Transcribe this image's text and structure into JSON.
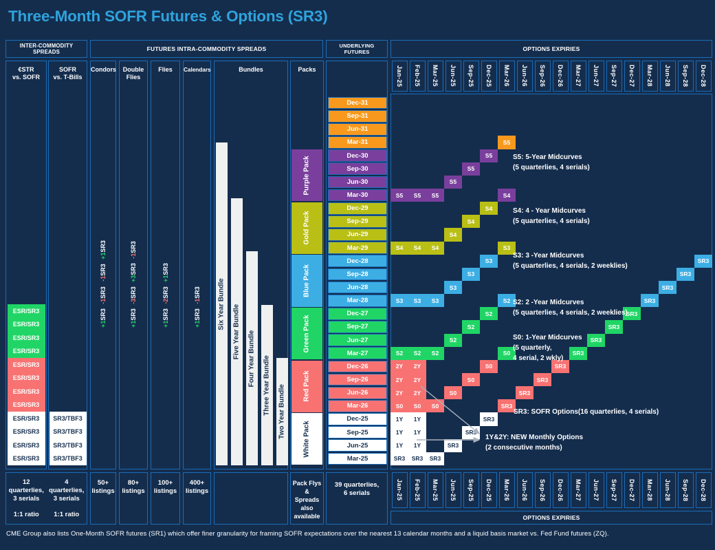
{
  "title": "Three-Month SOFR Futures & Options (SR3)",
  "footer": "CME Group also lists One-Month SOFR futures (SR1) which offer finer granularity for framing SOFR expectations over the nearest 13 calendar months and a liquid basis market vs. Fed Fund futures (ZQ).",
  "colors": {
    "background": "#142D4D",
    "border": "#1B6CB8",
    "title": "#2FA3DD",
    "orange": "#F8991D",
    "purple": "#7A3F9D",
    "gold": "#B9BF15",
    "blue": "#3CAEE4",
    "green": "#20D565",
    "red": "#F87272",
    "white": "#FFFFFF",
    "navy_text": "#16304F",
    "arrow": "#A9B2BC"
  },
  "headers": {
    "inter_commodity": "INTER-COMMODITY SPREADS",
    "intra_commodity": "FUTURES INTRA-COMMODITY SPREADS",
    "underlying_futures": "UNDERLYING FUTURES",
    "options_expiries_top": "OPTIONS EXPIRIES",
    "options_expiries_bottom": "OPTIONS EXPIRIES"
  },
  "inter_commodity": {
    "columns": [
      {
        "label": "€STR\nvs. SOFR",
        "summary": "12 quarterlies,\n3 serials",
        "ratio": "1:1 ratio",
        "blocks": [
          {
            "color": "green",
            "cells": [
              "ESR/SR3",
              "ESR/SR3",
              "ESR/SR3",
              "ESR/SR3"
            ]
          },
          {
            "color": "red",
            "cells": [
              "ESR/SR3",
              "ESR/SR3",
              "ESR/SR3",
              "ESR/SR3"
            ]
          },
          {
            "color": "white",
            "cells": [
              "ESR/SR3",
              "ESR/SR3",
              "ESR/SR3",
              "ESR/SR3"
            ]
          }
        ]
      },
      {
        "label": "SOFR\nvs. T-Bills",
        "summary": "4 quarterlies,\n3 serials",
        "ratio": "1:1 ratio",
        "blocks": [
          {
            "color": "white",
            "cells": [
              "SR3/TBF3",
              "SR3/TBF3",
              "SR3/TBF3",
              "SR3/TBF3"
            ]
          }
        ]
      }
    ]
  },
  "spreads": {
    "columns": [
      {
        "label": "Condors",
        "summary": "50+\nlistings",
        "legs": [
          {
            "sign": "+1",
            "instrument": "SR3"
          },
          {
            "sign": "-1",
            "instrument": "SR3"
          },
          {
            "sign": "-1",
            "instrument": "SR3"
          },
          {
            "sign": "+1",
            "instrument": "SR3"
          }
        ]
      },
      {
        "label": "Double\nFlies",
        "summary": "80+\nlistings",
        "legs": [
          {
            "sign": "+1",
            "instrument": "SR3"
          },
          {
            "sign": "-3",
            "instrument": "SR3"
          },
          {
            "sign": "+3",
            "instrument": "SR3"
          },
          {
            "sign": "-1",
            "instrument": "SR3"
          }
        ]
      },
      {
        "label": "Flies",
        "summary": "100+\nlistings",
        "legs": [
          {
            "sign": "+1",
            "instrument": "SR3"
          },
          {
            "sign": "-2",
            "instrument": "SR3"
          },
          {
            "sign": "+1",
            "instrument": "SR3"
          }
        ]
      },
      {
        "label": "Calendars",
        "summary": "400+\nlistings",
        "legs": [
          {
            "sign": "+1",
            "instrument": "SR3"
          },
          {
            "sign": "-1",
            "instrument": "SR3"
          }
        ]
      }
    ],
    "bundles": {
      "label": "Bundles",
      "bars": [
        "Six Year Bundle",
        "Five Year Bundle",
        "Four Year Bundle",
        "Three Year Bundle",
        "Two Year Bundle"
      ]
    },
    "packs": {
      "label": "Packs",
      "summary": "Pack Flys &\nSpreads also\navailable",
      "segments": [
        {
          "label": "Purple Pack",
          "color": "purple"
        },
        {
          "label": "Gold Pack",
          "color": "gold"
        },
        {
          "label": "Blue Pack",
          "color": "blue"
        },
        {
          "label": "Green Pack",
          "color": "green"
        },
        {
          "label": "Red Pack",
          "color": "red"
        },
        {
          "label": "White Pack",
          "color": "white"
        }
      ]
    }
  },
  "underlying_futures": {
    "summary": "39 quarterlies,\n6 serials",
    "rows": [
      {
        "label": "Dec-31",
        "color": "orange"
      },
      {
        "label": "Sep-31",
        "color": "orange"
      },
      {
        "label": "Jun-31",
        "color": "orange"
      },
      {
        "label": "Mar-31",
        "color": "orange"
      },
      {
        "label": "Dec-30",
        "color": "purple"
      },
      {
        "label": "Sep-30",
        "color": "purple"
      },
      {
        "label": "Jun-30",
        "color": "purple"
      },
      {
        "label": "Mar-30",
        "color": "purple"
      },
      {
        "label": "Dec-29",
        "color": "gold"
      },
      {
        "label": "Sep-29",
        "color": "gold"
      },
      {
        "label": "Jun-29",
        "color": "gold"
      },
      {
        "label": "Mar-29",
        "color": "gold"
      },
      {
        "label": "Dec-28",
        "color": "blue"
      },
      {
        "label": "Sep-28",
        "color": "blue"
      },
      {
        "label": "Jun-28",
        "color": "blue"
      },
      {
        "label": "Mar-28",
        "color": "blue"
      },
      {
        "label": "Dec-27",
        "color": "green"
      },
      {
        "label": "Sep-27",
        "color": "green"
      },
      {
        "label": "Jun-27",
        "color": "green"
      },
      {
        "label": "Mar-27",
        "color": "green"
      },
      {
        "label": "Dec-26",
        "color": "red"
      },
      {
        "label": "Sep-26",
        "color": "red"
      },
      {
        "label": "Jun-26",
        "color": "red"
      },
      {
        "label": "Mar-26",
        "color": "red"
      },
      {
        "label": "Dec-25",
        "color": "white"
      },
      {
        "label": "Sep-25",
        "color": "white"
      },
      {
        "label": "Jun-25",
        "color": "white"
      },
      {
        "label": "Mar-25",
        "color": "white"
      }
    ]
  },
  "options": {
    "expiries": [
      "Jan-25",
      "Feb-25",
      "Mar-25",
      "Jun-25",
      "Sep-25",
      "Dec-25",
      "Mar-26",
      "Jun-26",
      "Sep-26",
      "Dec-26",
      "Mar-27",
      "Jun-27",
      "Sep-27",
      "Dec-27",
      "Mar-28",
      "Jun-28",
      "Sep-28",
      "Dec-28"
    ],
    "cells": [
      {
        "expiry": "Jan-25",
        "future": "Mar-30",
        "label": "S5",
        "color": "purple"
      },
      {
        "expiry": "Feb-25",
        "future": "Mar-30",
        "label": "S5",
        "color": "purple"
      },
      {
        "expiry": "Mar-25",
        "future": "Mar-30",
        "label": "S5",
        "color": "purple"
      },
      {
        "expiry": "Jun-25",
        "future": "Jun-30",
        "label": "S5",
        "color": "purple"
      },
      {
        "expiry": "Sep-25",
        "future": "Sep-30",
        "label": "S5",
        "color": "purple"
      },
      {
        "expiry": "Dec-25",
        "future": "Dec-30",
        "label": "S5",
        "color": "purple"
      },
      {
        "expiry": "Mar-26",
        "future": "Mar-31",
        "label": "S5",
        "color": "orange"
      },
      {
        "expiry": "Jan-25",
        "future": "Mar-29",
        "label": "S4",
        "color": "gold"
      },
      {
        "expiry": "Feb-25",
        "future": "Mar-29",
        "label": "S4",
        "color": "gold"
      },
      {
        "expiry": "Mar-25",
        "future": "Mar-29",
        "label": "S4",
        "color": "gold"
      },
      {
        "expiry": "Jun-25",
        "future": "Jun-29",
        "label": "S4",
        "color": "gold"
      },
      {
        "expiry": "Sep-25",
        "future": "Sep-29",
        "label": "S4",
        "color": "gold"
      },
      {
        "expiry": "Dec-25",
        "future": "Dec-29",
        "label": "S4",
        "color": "gold"
      },
      {
        "expiry": "Mar-26",
        "future": "Mar-30",
        "label": "S4",
        "color": "purple"
      },
      {
        "expiry": "Jan-25",
        "future": "Mar-28",
        "label": "S3",
        "color": "blue"
      },
      {
        "expiry": "Feb-25",
        "future": "Mar-28",
        "label": "S3",
        "color": "blue"
      },
      {
        "expiry": "Mar-25",
        "future": "Mar-28",
        "label": "S3",
        "color": "blue"
      },
      {
        "expiry": "Jun-25",
        "future": "Jun-28",
        "label": "S3",
        "color": "blue"
      },
      {
        "expiry": "Sep-25",
        "future": "Sep-28",
        "label": "S3",
        "color": "blue"
      },
      {
        "expiry": "Dec-25",
        "future": "Dec-28",
        "label": "S3",
        "color": "blue"
      },
      {
        "expiry": "Mar-26",
        "future": "Mar-29",
        "label": "S3",
        "color": "gold"
      },
      {
        "expiry": "Jan-25",
        "future": "Mar-27",
        "label": "S2",
        "color": "green"
      },
      {
        "expiry": "Feb-25",
        "future": "Mar-27",
        "label": "S2",
        "color": "green"
      },
      {
        "expiry": "Mar-25",
        "future": "Mar-27",
        "label": "S2",
        "color": "green"
      },
      {
        "expiry": "Jun-25",
        "future": "Jun-27",
        "label": "S2",
        "color": "green"
      },
      {
        "expiry": "Sep-25",
        "future": "Sep-27",
        "label": "S2",
        "color": "green"
      },
      {
        "expiry": "Dec-25",
        "future": "Dec-27",
        "label": "S2",
        "color": "green"
      },
      {
        "expiry": "Mar-26",
        "future": "Mar-28",
        "label": "S2",
        "color": "blue"
      },
      {
        "expiry": "Jan-25",
        "future": "Mar-26",
        "label": "S0",
        "color": "red"
      },
      {
        "expiry": "Feb-25",
        "future": "Mar-26",
        "label": "S0",
        "color": "red"
      },
      {
        "expiry": "Mar-25",
        "future": "Mar-26",
        "label": "S0",
        "color": "red"
      },
      {
        "expiry": "Jun-25",
        "future": "Jun-26",
        "label": "S0",
        "color": "red"
      },
      {
        "expiry": "Sep-25",
        "future": "Sep-26",
        "label": "S0",
        "color": "red"
      },
      {
        "expiry": "Dec-25",
        "future": "Dec-26",
        "label": "S0",
        "color": "red"
      },
      {
        "expiry": "Mar-26",
        "future": "Mar-27",
        "label": "S0",
        "color": "green"
      },
      {
        "expiry": "Jan-25",
        "future": "Jun-26",
        "label": "2Y",
        "color": "red"
      },
      {
        "expiry": "Feb-25",
        "future": "Jun-26",
        "label": "2Y",
        "color": "red"
      },
      {
        "expiry": "Jan-25",
        "future": "Sep-26",
        "label": "2Y",
        "color": "red"
      },
      {
        "expiry": "Feb-25",
        "future": "Sep-26",
        "label": "2Y",
        "color": "red"
      },
      {
        "expiry": "Jan-25",
        "future": "Dec-26",
        "label": "2Y",
        "color": "red"
      },
      {
        "expiry": "Feb-25",
        "future": "Dec-26",
        "label": "2Y",
        "color": "red"
      },
      {
        "expiry": "Jan-25",
        "future": "Jun-25",
        "label": "1Y",
        "color": "white"
      },
      {
        "expiry": "Feb-25",
        "future": "Jun-25",
        "label": "1Y",
        "color": "white"
      },
      {
        "expiry": "Jan-25",
        "future": "Sep-25",
        "label": "1Y",
        "color": "white"
      },
      {
        "expiry": "Feb-25",
        "future": "Sep-25",
        "label": "1Y",
        "color": "white"
      },
      {
        "expiry": "Jan-25",
        "future": "Dec-25",
        "label": "1Y",
        "color": "white"
      },
      {
        "expiry": "Feb-25",
        "future": "Dec-25",
        "label": "1Y",
        "color": "white"
      },
      {
        "expiry": "Jan-25",
        "future": "Mar-25",
        "label": "SR3",
        "color": "white"
      },
      {
        "expiry": "Feb-25",
        "future": "Mar-25",
        "label": "SR3",
        "color": "white"
      },
      {
        "expiry": "Mar-25",
        "future": "Mar-25",
        "label": "SR3",
        "color": "white"
      },
      {
        "expiry": "Jun-25",
        "future": "Jun-25",
        "label": "SR3",
        "color": "white"
      },
      {
        "expiry": "Sep-25",
        "future": "Sep-25",
        "label": "SR3",
        "color": "white"
      },
      {
        "expiry": "Dec-25",
        "future": "Dec-25",
        "label": "SR3",
        "color": "white"
      },
      {
        "expiry": "Mar-26",
        "future": "Mar-26",
        "label": "SR3",
        "color": "red"
      },
      {
        "expiry": "Jun-26",
        "future": "Jun-26",
        "label": "SR3",
        "color": "red"
      },
      {
        "expiry": "Sep-26",
        "future": "Sep-26",
        "label": "SR3",
        "color": "red"
      },
      {
        "expiry": "Dec-26",
        "future": "Dec-26",
        "label": "SR3",
        "color": "red"
      },
      {
        "expiry": "Mar-27",
        "future": "Mar-27",
        "label": "SR3",
        "color": "green"
      },
      {
        "expiry": "Jun-27",
        "future": "Jun-27",
        "label": "SR3",
        "color": "green"
      },
      {
        "expiry": "Sep-27",
        "future": "Sep-27",
        "label": "SR3",
        "color": "green"
      },
      {
        "expiry": "Dec-27",
        "future": "Dec-27",
        "label": "SR3",
        "color": "green"
      },
      {
        "expiry": "Mar-28",
        "future": "Mar-28",
        "label": "SR3",
        "color": "blue"
      },
      {
        "expiry": "Jun-28",
        "future": "Jun-28",
        "label": "SR3",
        "color": "blue"
      },
      {
        "expiry": "Sep-28",
        "future": "Sep-28",
        "label": "SR3",
        "color": "blue"
      },
      {
        "expiry": "Dec-28",
        "future": "Dec-28",
        "label": "SR3",
        "color": "blue"
      }
    ],
    "annotations": [
      {
        "lines": [
          "S5: 5-Year Midcurves",
          "(5 quarterlies, 4 serials)"
        ]
      },
      {
        "lines": [
          "S4: 4 - Year Midcurves",
          "(5 quarterlies, 4 serials)"
        ]
      },
      {
        "lines": [
          "S3: 3 -Year Midcurves",
          "(5 quarterlies, 4 serials, 2 weeklies)"
        ]
      },
      {
        "lines": [
          "S2: 2 -Year Midcurves",
          "(5 quarterlies, 4 serials, 2 weeklies)"
        ]
      },
      {
        "lines": [
          "S0: 1-Year Midcurves",
          "(5 quarterly,",
          "4 serial, 2 wkly)"
        ]
      },
      {
        "lines": [
          "SR3: SOFR Options(16 quarterlies, 4 serials)"
        ]
      },
      {
        "lines": [
          "1Y&2Y: NEW Monthly Options",
          "(2 consecutive months)"
        ]
      }
    ]
  }
}
